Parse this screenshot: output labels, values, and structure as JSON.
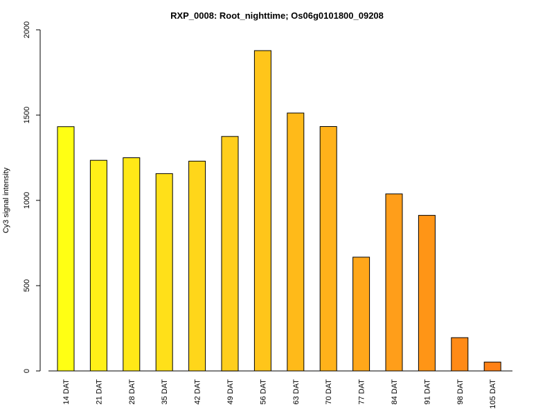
{
  "chart_data": {
    "type": "bar",
    "title": "RXP_0008: Root_nighttime; Os06g0101800_09208",
    "xlabel": "",
    "ylabel": "Cy3 signal intensity",
    "ylim": [
      0,
      2000
    ],
    "yticks": [
      0,
      500,
      1000,
      1500,
      2000
    ],
    "categories": [
      "14 DAT",
      "21 DAT",
      "28 DAT",
      "35 DAT",
      "42 DAT",
      "49 DAT",
      "56 DAT",
      "63 DAT",
      "70 DAT",
      "77 DAT",
      "84 DAT",
      "91 DAT",
      "98 DAT",
      "105 DAT"
    ],
    "values": [
      1432,
      1235,
      1250,
      1157,
      1230,
      1375,
      1878,
      1512,
      1433,
      667,
      1038,
      912,
      195,
      52
    ],
    "colors": [
      "#FFFF14",
      "#FFF018",
      "#FFE817",
      "#FFE019",
      "#FFD61A",
      "#FFCE1C",
      "#FFC51A",
      "#FFBA19",
      "#FFB21A",
      "#FFA71A",
      "#FF9E1A",
      "#FF9516",
      "#FF8A16",
      "#FF8116"
    ],
    "grid": false,
    "legend": "none"
  }
}
